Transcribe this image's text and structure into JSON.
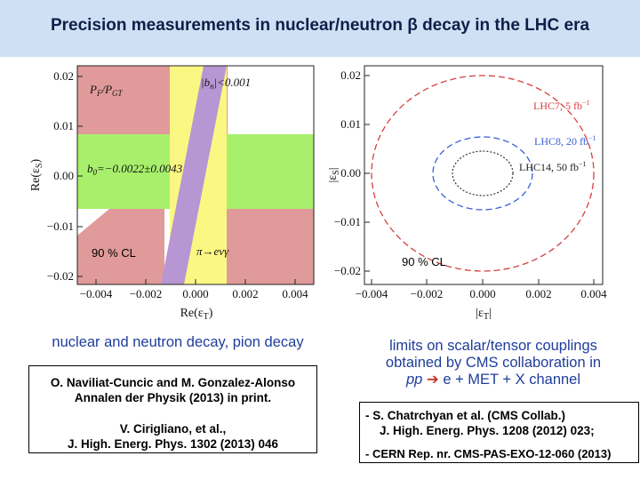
{
  "header": {
    "title": "Precision measurements in nuclear/neutron β decay in the LHC era"
  },
  "left_plot": {
    "ylabel": "Re(ε",
    "ylabel_sub": "S",
    "ylabel_close": ")",
    "xlabel": "Re(ε",
    "xlabel_sub": "T",
    "xlabel_close": ")",
    "yticks": [
      "0.02",
      "0.01",
      "0.00",
      "−0.01",
      "−0.02"
    ],
    "xticks": [
      "−0.004",
      "−0.002",
      "0.000",
      "0.002",
      "0.004"
    ],
    "band_pf_label": "P",
    "band_pf_sub1": "F",
    "band_pf_mid": "/P",
    "band_pf_sub2": "GT",
    "band_bn_label": "|b",
    "band_bn_sub": "n",
    "band_bn_rest": "|<0.001",
    "band_b0_label": "b",
    "band_b0_sub": "0",
    "band_b0_rest": "=−0.0022±0.0043",
    "band_pi_label": "π→eνγ",
    "cl_label": "90 % CL",
    "colors": {
      "pf": "#e19a9a",
      "b0": "#a8ef6c",
      "pi": "#fbf783",
      "bn": "#b796d3"
    }
  },
  "right_plot": {
    "ylabel": "|ε",
    "ylabel_sub": "S",
    "ylabel_close": "|",
    "xlabel": "|ε",
    "xlabel_sub": "T",
    "xlabel_close": "|",
    "yticks": [
      "0.02",
      "0.01",
      "0.00",
      "−0.01",
      "−0.02"
    ],
    "xticks": [
      "−0.004",
      "−0.002",
      "0.000",
      "0.002",
      "0.004"
    ],
    "lhc7_label": "LHC7, 5 fb",
    "lhc8_label": "LHC8, 20 fb",
    "lhc14_label": "LHC14, 50 fb",
    "sup": "−1",
    "cl_label": "90 % CL",
    "colors": {
      "lhc7": "#d64040",
      "lhc8": "#3a5ed6",
      "lhc14": "#333333"
    }
  },
  "left_caption": "nuclear and neutron decay, pion decay",
  "right_caption": {
    "line1": "limits on scalar/tensor couplings",
    "line2": "obtained by CMS collaboration in",
    "pp": "pp",
    "arrow": "➔",
    "rest": " e + MET + X channel"
  },
  "left_refs": {
    "ref1_line1": "O. Naviliat-Cuncic and M. Gonzalez-Alonso",
    "ref1_line2": "Annalen der Physik (2013) in print.",
    "ref2_line1": "V. Cirigliano, et al.,",
    "ref2_line2": "J. High. Energ. Phys. 1302 (2013) 046"
  },
  "right_refs": {
    "ref1_line1": "- S. Chatrchyan et al. (CMS Collab.)",
    "ref1_line2": "J. High. Energ. Phys. 1208 (2012) 023;",
    "ref2_line1": "- CERN Rep. nr. CMS-PAS-EXO-12-060 (2013)"
  }
}
